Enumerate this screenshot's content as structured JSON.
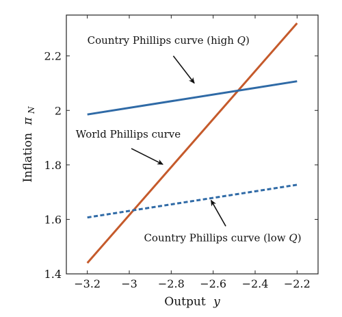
{
  "chart_data": {
    "type": "line",
    "xlabel": "Output",
    "xlabel_var": "y",
    "ylabel": "Inflation",
    "ylabel_var": "π",
    "ylabel_sub": "N",
    "xlim": [
      -3.3,
      -2.1
    ],
    "ylim": [
      1.4,
      2.35
    ],
    "x_ticks": [
      -3.2,
      -3.0,
      -2.8,
      -2.6,
      -2.4,
      -2.2
    ],
    "x_tick_labels": [
      "−3.2",
      "−3",
      "−2.8",
      "−2.6",
      "−2.4",
      "−2.2"
    ],
    "y_ticks": [
      1.4,
      1.6,
      1.8,
      2.0,
      2.2
    ],
    "y_tick_labels": [
      "1.4",
      "1.6",
      "1.8",
      "2",
      "2.2"
    ],
    "grid": false,
    "series": [
      {
        "key": "world",
        "x": [
          -3.2,
          -2.2
        ],
        "y": [
          1.44,
          2.32
        ],
        "color": "#c55a2b",
        "dash": "solid"
      },
      {
        "key": "high_q",
        "x": [
          -3.2,
          -2.2
        ],
        "y": [
          1.985,
          2.107
        ],
        "color": "#2f6aa6",
        "dash": "solid"
      },
      {
        "key": "low_q",
        "x": [
          -3.2,
          -2.2
        ],
        "y": [
          1.607,
          1.727
        ],
        "color": "#2f6aa6",
        "dash": "dashed"
      }
    ],
    "annotations": [
      {
        "key": "high_q",
        "text": "Country Phillips curve (high ",
        "var": "Q",
        "close": ")",
        "text_x": -3.2,
        "text_y": 2.245,
        "arrow_from": [
          -2.79,
          2.2
        ],
        "arrow_to": [
          -2.69,
          2.1
        ]
      },
      {
        "key": "world",
        "text": "World Phillips curve",
        "var": "",
        "close": "",
        "text_x": -3.255,
        "text_y": 1.9,
        "arrow_from": [
          -2.99,
          1.86
        ],
        "arrow_to": [
          -2.84,
          1.802
        ]
      },
      {
        "key": "low_q",
        "text": "Country Phillips curve (low ",
        "var": "Q",
        "close": ")",
        "text_x": -2.93,
        "text_y": 1.52,
        "arrow_from": [
          -2.54,
          1.575
        ],
        "arrow_to": [
          -2.61,
          1.67
        ]
      }
    ]
  }
}
